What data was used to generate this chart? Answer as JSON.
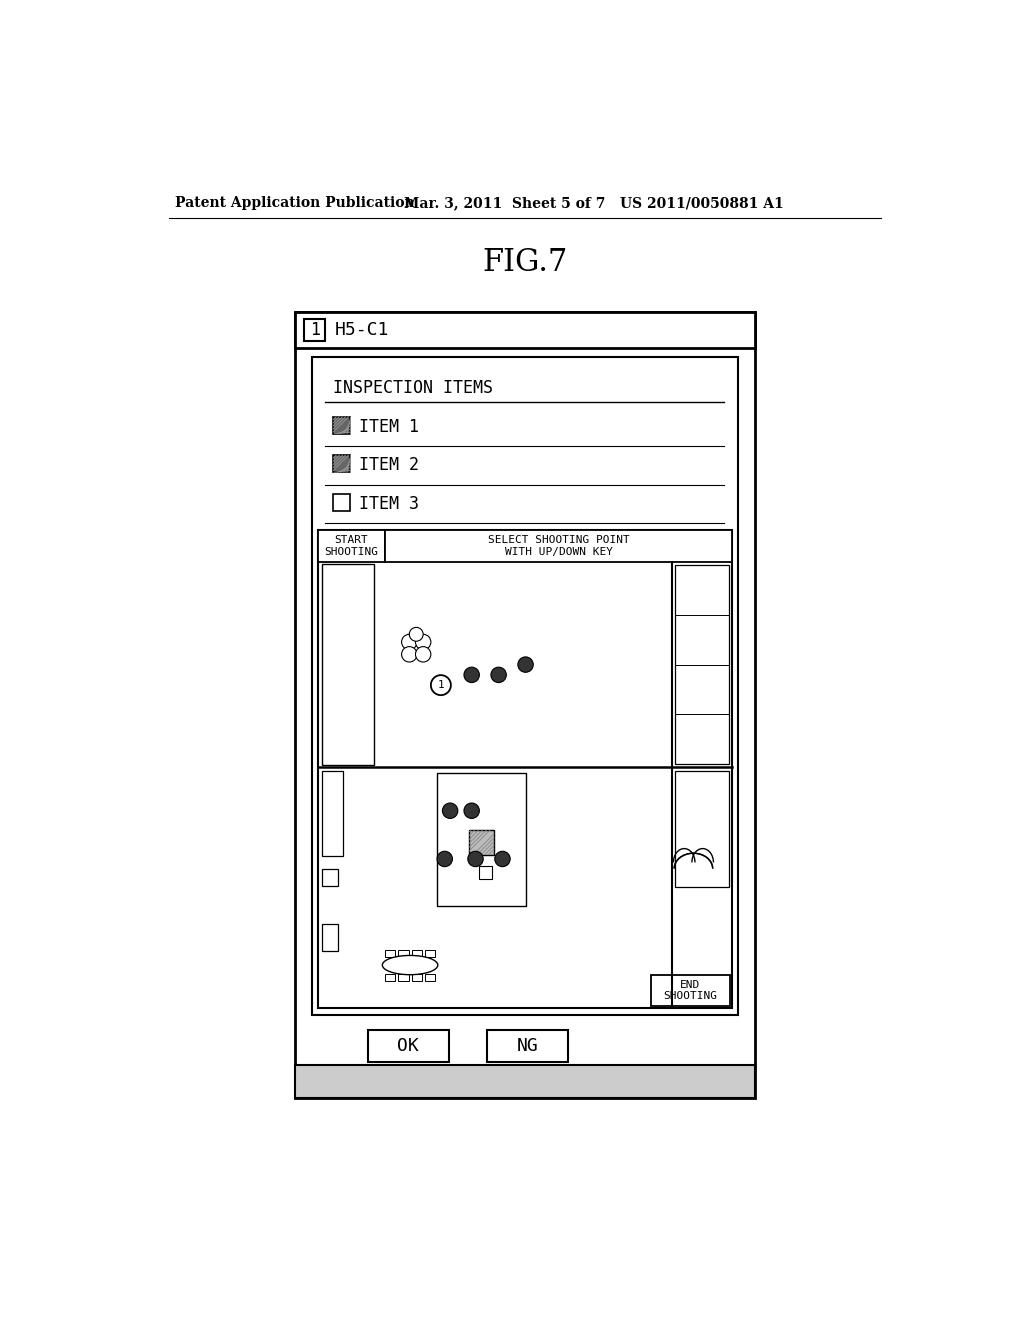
{
  "fig_title": "FIG.7",
  "header_left": "Patent Application Publication",
  "header_mid": "Mar. 3, 2011  Sheet 5 of 7",
  "header_right": "US 2011/0050881 A1",
  "screen_label": "H5-C1",
  "screen_num": "1",
  "inspection_title": "INSPECTION ITEMS",
  "items": [
    "ITEM 1",
    "ITEM 2",
    "ITEM 3"
  ],
  "item_checked": [
    true,
    true,
    false
  ],
  "start_btn_line1": "START",
  "start_btn_line2": "SHOOTING",
  "select_msg_line1": "SELECT SHOOTING POINT",
  "select_msg_line2": "WITH UP/DOWN KEY",
  "end_btn_line1": "END",
  "end_btn_line2": "SHOOTING",
  "ok_btn": "OK",
  "ng_btn": "NG",
  "bg_color": "#ffffff",
  "checked_fill": "#666666",
  "dot_dark": "#333333",
  "gray_fill": "#bbbbbb"
}
